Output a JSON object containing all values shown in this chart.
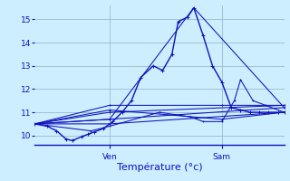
{
  "bg_color": "#cceeff",
  "grid_color": "#99bbcc",
  "line_color": "#1111bb",
  "title": "Température (°c)",
  "ylabel_ticks": [
    10,
    11,
    12,
    13,
    14,
    15
  ],
  "ylim": [
    9.6,
    15.6
  ],
  "xlim": [
    0,
    40
  ],
  "ven_x": 12,
  "sam_x": 30,
  "series": [
    [
      0,
      10.5,
      2,
      10.4,
      3.5,
      10.2,
      5,
      9.85,
      6,
      9.78,
      7.5,
      9.95,
      8.5,
      10.05,
      9.5,
      10.15,
      11,
      10.3,
      12.5,
      10.6,
      14,
      11.0,
      15.5,
      11.5,
      17,
      12.5,
      19,
      13.0,
      20.5,
      12.8,
      22,
      13.5,
      23,
      14.9,
      24.5,
      15.1,
      25.5,
      15.5,
      27,
      14.3,
      28.5,
      13.0,
      30,
      12.3,
      31.5,
      11.2,
      33,
      11.1,
      34.5,
      11.0,
      36,
      11.0,
      37.5,
      11.0,
      39,
      11.0,
      40,
      11.0
    ],
    [
      0,
      10.5,
      12,
      10.7,
      25.5,
      15.5,
      40,
      11.2
    ],
    [
      0,
      10.5,
      12,
      10.5,
      40,
      11.0
    ],
    [
      0,
      10.5,
      12,
      10.7,
      40,
      11.2
    ],
    [
      0,
      10.5,
      12,
      11.0,
      40,
      11.3
    ],
    [
      0,
      10.5,
      12,
      11.1,
      30,
      10.7,
      40,
      11.0
    ],
    [
      0,
      10.5,
      12,
      11.3,
      30,
      11.3,
      40,
      11.3
    ],
    [
      0,
      10.5,
      9,
      10.2,
      12,
      10.4,
      20,
      11.0,
      25,
      10.8,
      27,
      10.6,
      30,
      10.6,
      32,
      11.5,
      33,
      12.4,
      35,
      11.5,
      37,
      11.3,
      40,
      11.0
    ]
  ],
  "title_fontsize": 8,
  "tick_fontsize": 6.5
}
